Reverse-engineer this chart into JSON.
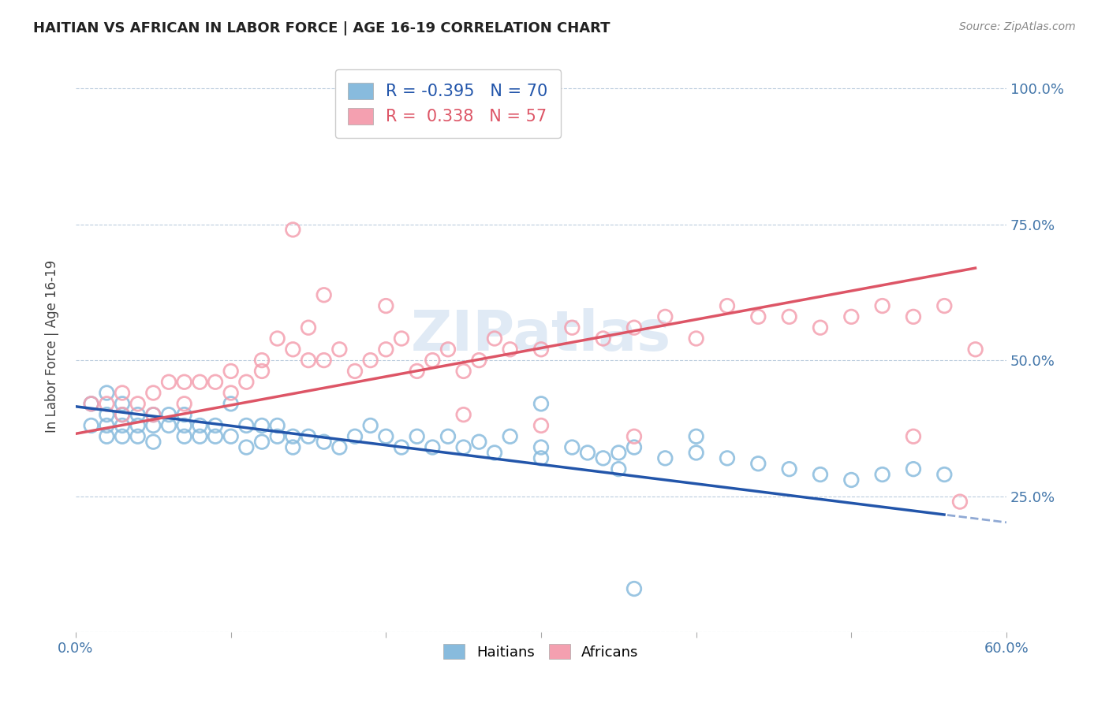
{
  "title": "HAITIAN VS AFRICAN IN LABOR FORCE | AGE 16-19 CORRELATION CHART",
  "source": "Source: ZipAtlas.com",
  "ylabel": "In Labor Force | Age 16-19",
  "xlim": [
    0.0,
    0.6
  ],
  "ylim": [
    0.0,
    1.05
  ],
  "ytick_vals": [
    0.0,
    0.25,
    0.5,
    0.75,
    1.0
  ],
  "ytick_labels": [
    "",
    "25.0%",
    "50.0%",
    "75.0%",
    "100.0%"
  ],
  "xtick_show": [
    0.0,
    0.6
  ],
  "xtick_labels": [
    "0.0%",
    "60.0%"
  ],
  "haitian_color": "#88bbdd",
  "african_color": "#f4a0b0",
  "haitian_line_color": "#2255aa",
  "african_line_color": "#dd5566",
  "haitian_R": -0.395,
  "haitian_N": 70,
  "african_R": 0.338,
  "african_N": 57,
  "grid_color": "#bbccdd",
  "background_color": "#ffffff",
  "haitian_scatter_x": [
    0.01,
    0.01,
    0.02,
    0.02,
    0.02,
    0.02,
    0.03,
    0.03,
    0.03,
    0.03,
    0.04,
    0.04,
    0.04,
    0.05,
    0.05,
    0.05,
    0.06,
    0.06,
    0.07,
    0.07,
    0.07,
    0.08,
    0.08,
    0.09,
    0.09,
    0.1,
    0.1,
    0.11,
    0.11,
    0.12,
    0.12,
    0.13,
    0.13,
    0.14,
    0.14,
    0.15,
    0.16,
    0.17,
    0.18,
    0.19,
    0.2,
    0.21,
    0.22,
    0.23,
    0.24,
    0.25,
    0.26,
    0.27,
    0.28,
    0.3,
    0.3,
    0.32,
    0.33,
    0.34,
    0.35,
    0.36,
    0.38,
    0.4,
    0.42,
    0.44,
    0.46,
    0.48,
    0.5,
    0.52,
    0.54,
    0.56,
    0.3,
    0.35,
    0.4,
    0.36
  ],
  "haitian_scatter_y": [
    0.42,
    0.38,
    0.44,
    0.4,
    0.36,
    0.38,
    0.42,
    0.4,
    0.36,
    0.38,
    0.4,
    0.38,
    0.36,
    0.38,
    0.35,
    0.4,
    0.4,
    0.38,
    0.38,
    0.4,
    0.36,
    0.38,
    0.36,
    0.38,
    0.36,
    0.42,
    0.36,
    0.38,
    0.34,
    0.38,
    0.35,
    0.38,
    0.36,
    0.36,
    0.34,
    0.36,
    0.35,
    0.34,
    0.36,
    0.38,
    0.36,
    0.34,
    0.36,
    0.34,
    0.36,
    0.34,
    0.35,
    0.33,
    0.36,
    0.34,
    0.32,
    0.34,
    0.33,
    0.32,
    0.33,
    0.34,
    0.32,
    0.33,
    0.32,
    0.31,
    0.3,
    0.29,
    0.28,
    0.29,
    0.3,
    0.29,
    0.42,
    0.3,
    0.36,
    0.08
  ],
  "african_scatter_x": [
    0.01,
    0.02,
    0.03,
    0.03,
    0.04,
    0.05,
    0.05,
    0.06,
    0.07,
    0.07,
    0.08,
    0.09,
    0.1,
    0.1,
    0.11,
    0.12,
    0.12,
    0.13,
    0.14,
    0.15,
    0.15,
    0.16,
    0.17,
    0.18,
    0.19,
    0.2,
    0.21,
    0.22,
    0.23,
    0.24,
    0.25,
    0.26,
    0.27,
    0.28,
    0.3,
    0.32,
    0.34,
    0.36,
    0.38,
    0.4,
    0.42,
    0.44,
    0.46,
    0.48,
    0.5,
    0.52,
    0.54,
    0.56,
    0.58,
    0.14,
    0.16,
    0.2,
    0.25,
    0.3,
    0.36,
    0.54,
    0.57
  ],
  "african_scatter_y": [
    0.42,
    0.42,
    0.44,
    0.4,
    0.42,
    0.44,
    0.4,
    0.46,
    0.46,
    0.42,
    0.46,
    0.46,
    0.48,
    0.44,
    0.46,
    0.5,
    0.48,
    0.54,
    0.52,
    0.5,
    0.56,
    0.5,
    0.52,
    0.48,
    0.5,
    0.52,
    0.54,
    0.48,
    0.5,
    0.52,
    0.48,
    0.5,
    0.54,
    0.52,
    0.52,
    0.56,
    0.54,
    0.56,
    0.58,
    0.54,
    0.6,
    0.58,
    0.58,
    0.56,
    0.58,
    0.6,
    0.58,
    0.6,
    0.52,
    0.74,
    0.62,
    0.6,
    0.4,
    0.38,
    0.36,
    0.36,
    0.24
  ]
}
